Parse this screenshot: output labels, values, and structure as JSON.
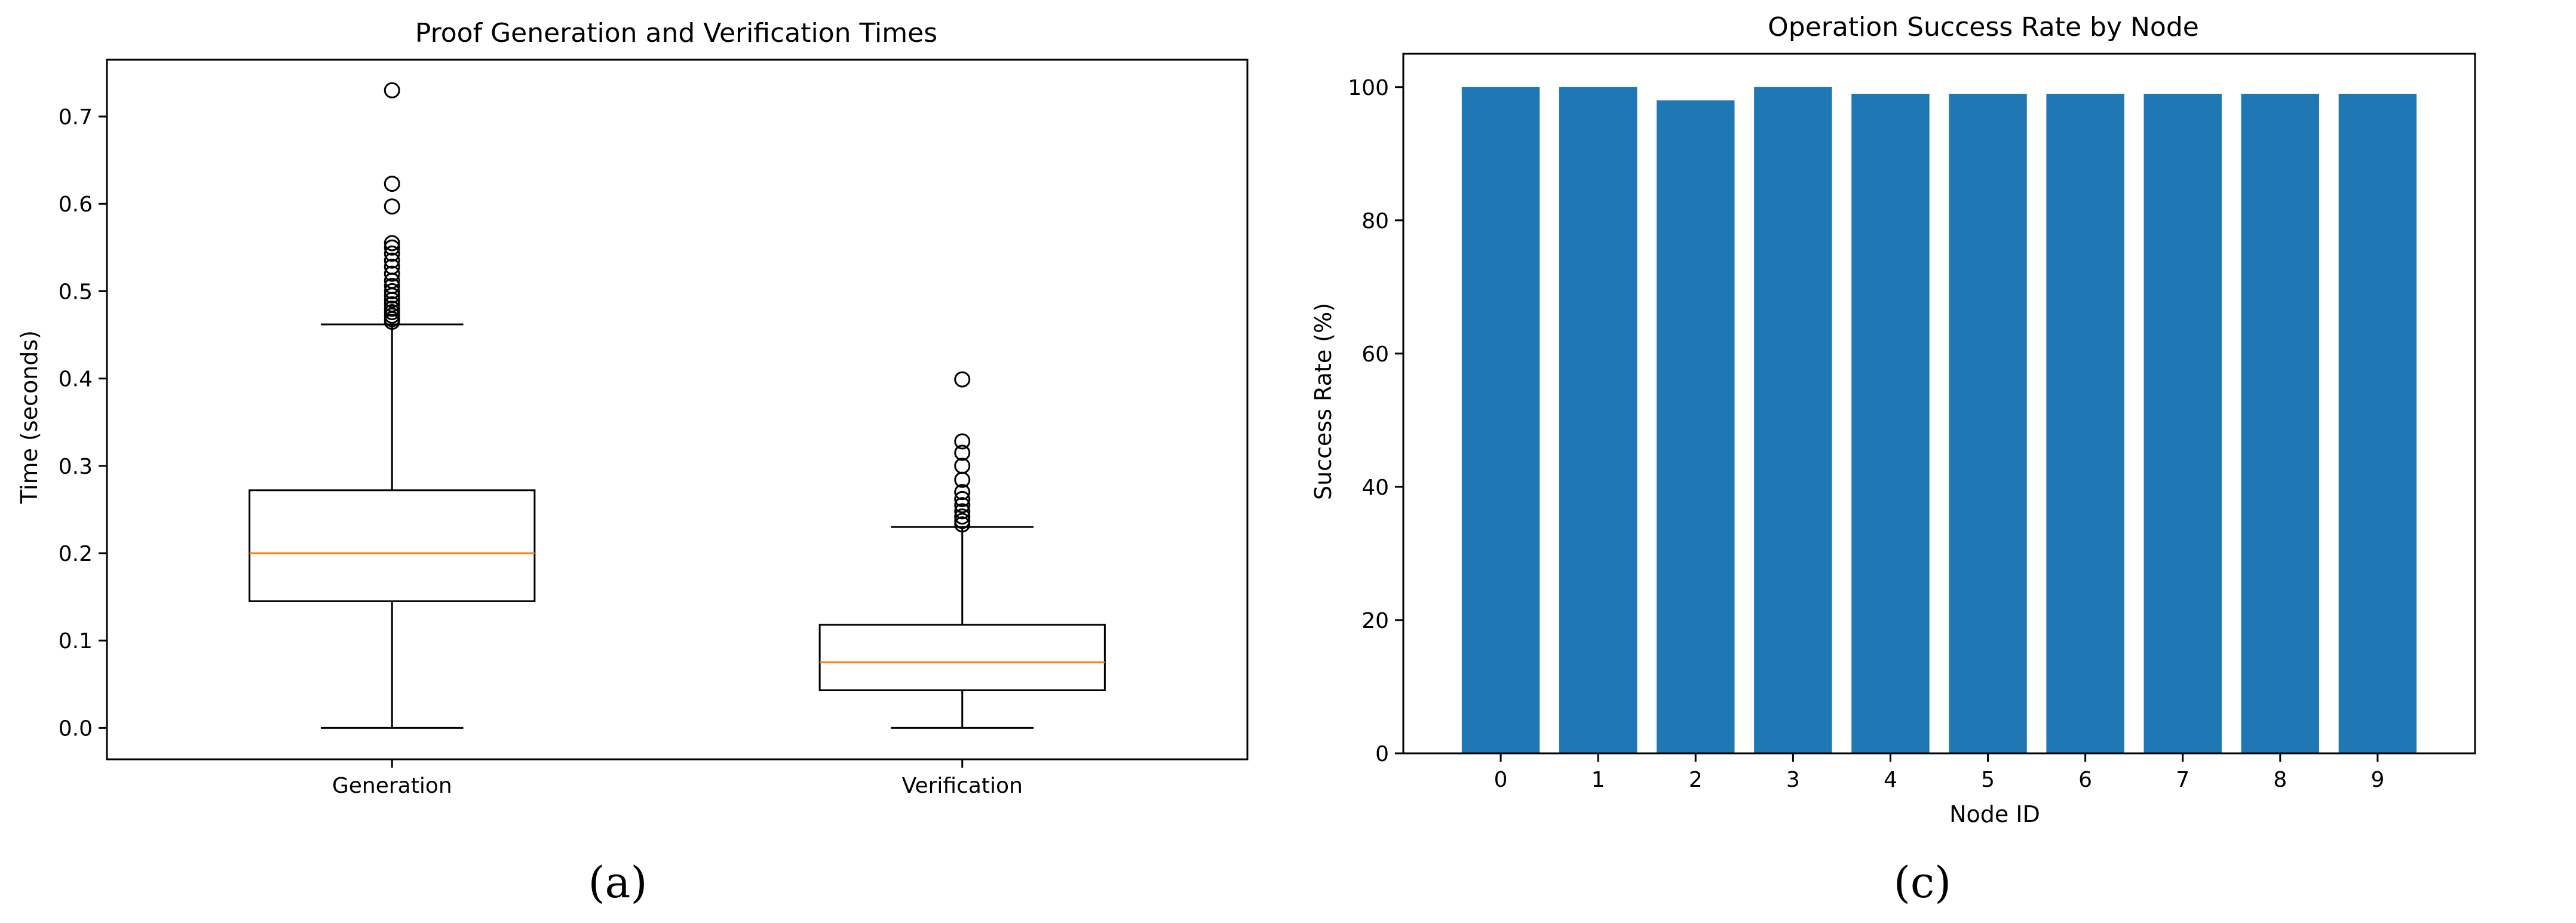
{
  "colors": {
    "box_stroke": "#000000",
    "median": "#ff7f0e",
    "bar_fill": "#1f77b4",
    "frame": "#000000"
  },
  "chart_data": [
    {
      "type": "box",
      "title": "Proof Generation and Verification Times",
      "xlabel": "",
      "ylabel": "Time (seconds)",
      "ylim": [
        -0.036,
        0.765
      ],
      "yticks": [
        0.0,
        0.1,
        0.2,
        0.3,
        0.4,
        0.5,
        0.6,
        0.7
      ],
      "ytick_labels": [
        "0.0",
        "0.1",
        "0.2",
        "0.3",
        "0.4",
        "0.5",
        "0.6",
        "0.7"
      ],
      "grid": false,
      "caption": "(a)",
      "categories": [
        "Generation",
        "Verification"
      ],
      "series": [
        {
          "category": "Generation",
          "whisker_low": 0.0,
          "q1": 0.145,
          "median": 0.2,
          "q3": 0.272,
          "whisker_high": 0.462,
          "outliers": [
            0.465,
            0.468,
            0.472,
            0.476,
            0.48,
            0.485,
            0.49,
            0.495,
            0.5,
            0.506,
            0.512,
            0.52,
            0.528,
            0.535,
            0.543,
            0.55,
            0.555,
            0.597,
            0.623,
            0.73
          ]
        },
        {
          "category": "Verification",
          "whisker_low": 0.0,
          "q1": 0.043,
          "median": 0.075,
          "q3": 0.118,
          "whisker_high": 0.23,
          "outliers": [
            0.233,
            0.237,
            0.242,
            0.248,
            0.255,
            0.262,
            0.27,
            0.284,
            0.3,
            0.315,
            0.328,
            0.399
          ]
        }
      ]
    },
    {
      "type": "bar",
      "title": "Operation Success Rate by Node",
      "xlabel": "Node ID",
      "ylabel": "Success Rate (%)",
      "ylim": [
        0,
        105
      ],
      "yticks": [
        0,
        20,
        40,
        60,
        80,
        100
      ],
      "ytick_labels": [
        "0",
        "20",
        "40",
        "60",
        "80",
        "100"
      ],
      "grid": false,
      "caption": "(c)",
      "categories": [
        "0",
        "1",
        "2",
        "3",
        "4",
        "5",
        "6",
        "7",
        "8",
        "9"
      ],
      "values": [
        100,
        100,
        98,
        100,
        99,
        99,
        99,
        99,
        99,
        99
      ]
    }
  ]
}
